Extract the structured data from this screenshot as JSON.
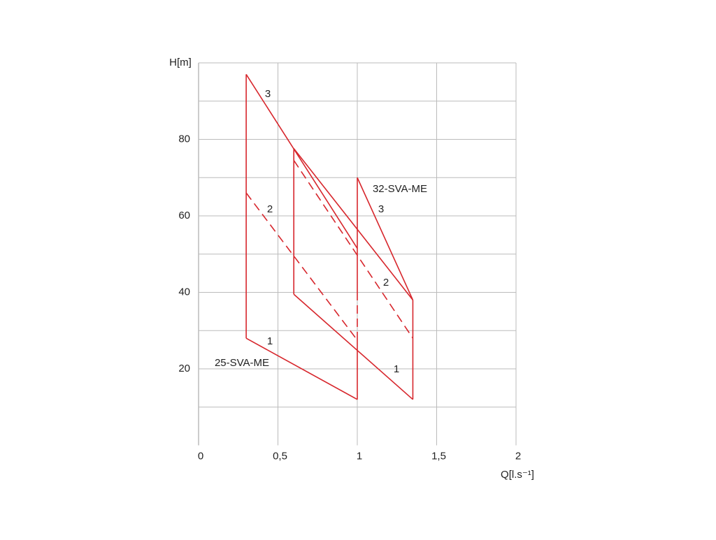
{
  "chart_data": {
    "type": "line",
    "y_label": "H[m]",
    "x_label": "Q[l.s⁻¹]",
    "xlim": [
      0,
      2
    ],
    "ylim": [
      0,
      100
    ],
    "xticks": [
      0,
      {
        "value": 0.5,
        "label": "0,5"
      },
      1,
      {
        "value": 1.5,
        "label": "1,5"
      },
      2
    ],
    "yticks": [
      20,
      40,
      60,
      80
    ],
    "ygrid": [
      10,
      20,
      30,
      40,
      50,
      60,
      70,
      80,
      90
    ],
    "xgrid": [
      0.5,
      1,
      1.5,
      2
    ],
    "grid": true,
    "color": "#d7262c",
    "series": [
      {
        "x": [
          0.3,
          0.3
        ],
        "values": [
          28,
          97
        ],
        "dashed": false
      },
      {
        "x": [
          0.3,
          1
        ],
        "values": [
          97,
          51.5
        ],
        "dashed": false
      },
      {
        "x": [
          0.3,
          1
        ],
        "values": [
          28,
          12
        ],
        "dashed": false
      },
      {
        "x": [
          0.3,
          1
        ],
        "values": [
          66,
          27.5
        ],
        "dashed": true
      },
      {
        "x": [
          0.6,
          0.6
        ],
        "values": [
          39.5,
          77.6
        ],
        "dashed": false
      },
      {
        "x": [
          0.6,
          1.35
        ],
        "values": [
          77.6,
          38
        ],
        "dashed": false
      },
      {
        "x": [
          0.6,
          1.35
        ],
        "values": [
          39.5,
          12
        ],
        "dashed": false
      },
      {
        "x": [
          0.6,
          1.35
        ],
        "values": [
          74.5,
          28
        ],
        "dashed": true
      },
      {
        "x": [
          1.35,
          1.35
        ],
        "values": [
          12,
          38
        ],
        "dashed": false
      },
      {
        "x": [
          1,
          1
        ],
        "values": [
          12,
          27.5
        ],
        "dashed": false
      },
      {
        "x": [
          1,
          1
        ],
        "values": [
          27.5,
          39
        ],
        "dashed": true
      },
      {
        "x": [
          1,
          1
        ],
        "values": [
          39,
          70
        ],
        "dashed": false
      },
      {
        "x": [
          1,
          1.35
        ],
        "values": [
          70,
          38
        ],
        "dashed": false
      }
    ],
    "annotations": [
      "3",
      "2",
      "1",
      "25-SVA-ME",
      "32-SVA-ME",
      "3",
      "2",
      "1"
    ]
  }
}
